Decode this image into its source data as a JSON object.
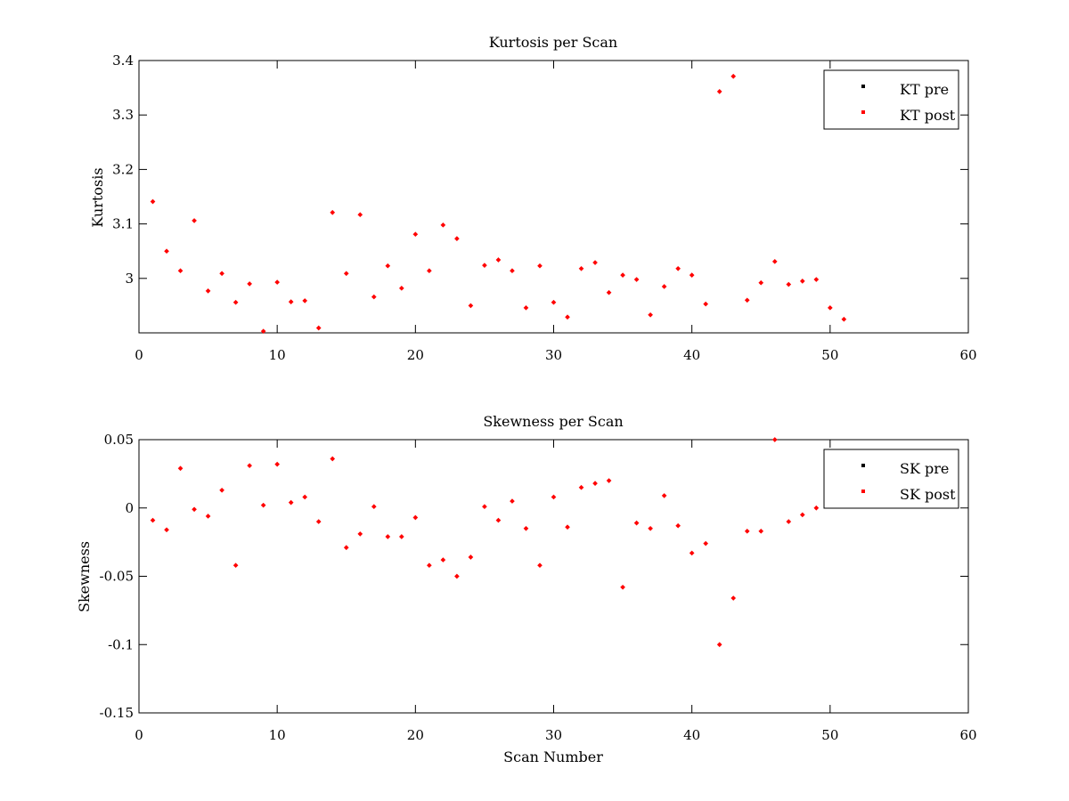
{
  "chart_data": [
    {
      "type": "scatter",
      "title": "Kurtosis per Scan",
      "xlabel": "",
      "ylabel": "Kurtosis",
      "xlim": [
        0,
        60
      ],
      "ylim": [
        2.9,
        3.4
      ],
      "xticks": [
        "0",
        "10",
        "20",
        "30",
        "40",
        "50",
        "60"
      ],
      "yticks": [
        "3",
        "3.1",
        "3.2",
        "3.3",
        "3.4"
      ],
      "legend_position": "top-right",
      "grid": false,
      "series": [
        {
          "name": "KT pre",
          "color": "#000000",
          "x": [],
          "y": []
        },
        {
          "name": "KT post",
          "color": "#ff0000",
          "x": [
            1,
            2,
            3,
            4,
            5,
            6,
            7,
            8,
            9,
            10,
            11,
            12,
            13,
            14,
            15,
            16,
            17,
            18,
            19,
            20,
            21,
            22,
            23,
            24,
            25,
            26,
            27,
            28,
            29,
            30,
            31,
            32,
            33,
            34,
            35,
            36,
            37,
            38,
            39,
            40,
            41,
            42,
            43,
            44,
            45,
            46,
            47,
            48,
            49,
            50,
            51
          ],
          "y": [
            3.141,
            3.05,
            3.014,
            3.106,
            2.977,
            3.009,
            2.956,
            2.99,
            2.903,
            2.993,
            2.957,
            2.959,
            2.909,
            3.121,
            3.009,
            3.117,
            2.966,
            3.023,
            2.982,
            3.081,
            3.014,
            3.098,
            3.073,
            2.95,
            3.024,
            3.034,
            3.014,
            2.946,
            3.023,
            2.956,
            2.929,
            3.018,
            3.029,
            2.974,
            3.006,
            2.998,
            2.933,
            2.985,
            3.018,
            3.006,
            2.953,
            3.343,
            3.371,
            2.96,
            2.992,
            3.031,
            2.989,
            2.995,
            2.998,
            2.946,
            2.925
          ]
        }
      ]
    },
    {
      "type": "scatter",
      "title": "Skewness per Scan",
      "xlabel": "Scan Number",
      "ylabel": "Skewness",
      "xlim": [
        0,
        60
      ],
      "ylim": [
        -0.15,
        0.05
      ],
      "xticks": [
        "0",
        "10",
        "20",
        "30",
        "40",
        "50",
        "60"
      ],
      "yticks": [
        "-0.15",
        "-0.1",
        "-0.05",
        "0",
        "0.05"
      ],
      "legend_position": "top-right",
      "grid": false,
      "series": [
        {
          "name": "SK pre",
          "color": "#000000",
          "x": [],
          "y": []
        },
        {
          "name": "SK post",
          "color": "#ff0000",
          "x": [
            1,
            2,
            3,
            4,
            5,
            6,
            7,
            8,
            9,
            10,
            11,
            12,
            13,
            14,
            15,
            16,
            17,
            18,
            19,
            20,
            21,
            22,
            23,
            24,
            25,
            26,
            27,
            28,
            29,
            30,
            31,
            32,
            33,
            34,
            35,
            36,
            37,
            38,
            39,
            40,
            41,
            42,
            43,
            44,
            45,
            46,
            47,
            48,
            49
          ],
          "y": [
            -0.009,
            -0.016,
            0.029,
            -0.001,
            -0.006,
            0.013,
            -0.042,
            0.031,
            0.002,
            0.032,
            0.004,
            0.008,
            -0.01,
            0.036,
            -0.029,
            -0.019,
            0.001,
            -0.021,
            -0.021,
            -0.007,
            -0.042,
            -0.038,
            -0.05,
            -0.036,
            0.001,
            -0.009,
            0.005,
            -0.015,
            -0.042,
            0.008,
            -0.014,
            0.015,
            0.018,
            0.02,
            -0.058,
            -0.011,
            -0.015,
            0.009,
            -0.013,
            -0.033,
            -0.026,
            -0.1,
            -0.066,
            -0.017,
            -0.017,
            0.05,
            -0.01,
            -0.005,
            0.0
          ]
        }
      ]
    }
  ]
}
